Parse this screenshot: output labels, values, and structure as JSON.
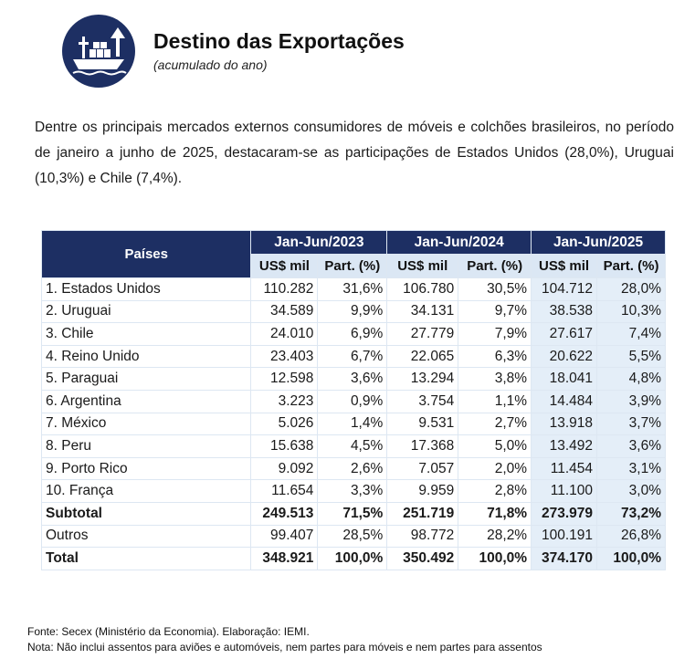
{
  "header": {
    "title": "Destino das Exportações",
    "subtitle": "(acumulado do ano)",
    "icon": "cargo-ship-export-icon"
  },
  "intro": "Dentre os principais mercados externos consumidores de móveis e colchões brasileiros, no período de janeiro a junho de 2025, destacaram-se as participações de Estados Unidos (28,0%), Uruguai (10,3%) e Chile (7,4%).",
  "table": {
    "countries_header": "Países",
    "periods": [
      "Jan-Jun/2023",
      "Jan-Jun/2024",
      "Jan-Jun/2025"
    ],
    "value_header": "US$ mil",
    "share_header": "Part.  (%)",
    "rows": [
      {
        "country": "1. Estados Unidos",
        "v2023": "110.282",
        "p2023": "31,6%",
        "v2024": "106.780",
        "p2024": "30,5%",
        "v2025": "104.712",
        "p2025": "28,0%"
      },
      {
        "country": "2. Uruguai",
        "v2023": "34.589",
        "p2023": "9,9%",
        "v2024": "34.131",
        "p2024": "9,7%",
        "v2025": "38.538",
        "p2025": "10,3%"
      },
      {
        "country": "3. Chile",
        "v2023": "24.010",
        "p2023": "6,9%",
        "v2024": "27.779",
        "p2024": "7,9%",
        "v2025": "27.617",
        "p2025": "7,4%"
      },
      {
        "country": "4. Reino Unido",
        "v2023": "23.403",
        "p2023": "6,7%",
        "v2024": "22.065",
        "p2024": "6,3%",
        "v2025": "20.622",
        "p2025": "5,5%"
      },
      {
        "country": "5. Paraguai",
        "v2023": "12.598",
        "p2023": "3,6%",
        "v2024": "13.294",
        "p2024": "3,8%",
        "v2025": "18.041",
        "p2025": "4,8%"
      },
      {
        "country": "6. Argentina",
        "v2023": "3.223",
        "p2023": "0,9%",
        "v2024": "3.754",
        "p2024": "1,1%",
        "v2025": "14.484",
        "p2025": "3,9%"
      },
      {
        "country": "7. México",
        "v2023": "5.026",
        "p2023": "1,4%",
        "v2024": "9.531",
        "p2024": "2,7%",
        "v2025": "13.918",
        "p2025": "3,7%"
      },
      {
        "country": "8. Peru",
        "v2023": "15.638",
        "p2023": "4,5%",
        "v2024": "17.368",
        "p2024": "5,0%",
        "v2025": "13.492",
        "p2025": "3,6%"
      },
      {
        "country": "9. Porto Rico",
        "v2023": "9.092",
        "p2023": "2,6%",
        "v2024": "7.057",
        "p2024": "2,0%",
        "v2025": "11.454",
        "p2025": "3,1%"
      },
      {
        "country": "10. França",
        "v2023": "11.654",
        "p2023": "3,3%",
        "v2024": "9.959",
        "p2024": "2,8%",
        "v2025": "11.100",
        "p2025": "3,0%"
      }
    ],
    "subtotal": {
      "label": "Subtotal",
      "v2023": "249.513",
      "p2023": "71,5%",
      "v2024": "251.719",
      "p2024": "71,8%",
      "v2025": "273.979",
      "p2025": "73,2%"
    },
    "others": {
      "label": "Outros",
      "v2023": "99.407",
      "p2023": "28,5%",
      "v2024": "98.772",
      "p2024": "28,2%",
      "v2025": "100.191",
      "p2025": "26,8%"
    },
    "total": {
      "label": "Total",
      "v2023": "348.921",
      "p2023": "100,0%",
      "v2024": "350.492",
      "p2024": "100,0%",
      "v2025": "374.170",
      "p2025": "100,0%"
    }
  },
  "notes": {
    "source": "Fonte: Secex (Ministério da Economia). Elaboração: IEMI.",
    "note": "Nota: Não inclui assentos para aviões e automóveis, nem partes para móveis e nem partes para assentos"
  },
  "colors": {
    "navy": "#1d2f63",
    "subheader": "#dbe7f4",
    "shaded_cell": "#e4eef8"
  }
}
